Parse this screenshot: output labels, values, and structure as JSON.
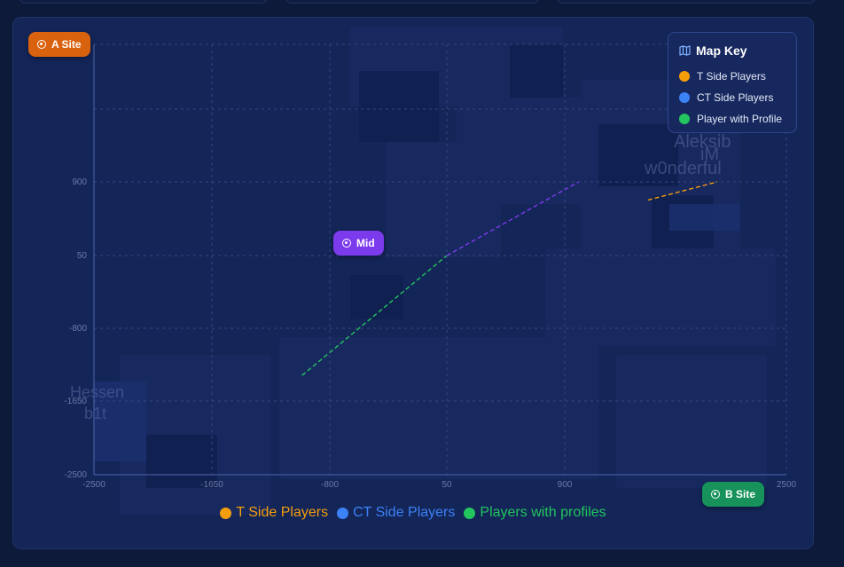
{
  "colors": {
    "t_side": "#f59e0b",
    "ct_side": "#3b82f6",
    "profile": "#22c55e",
    "mid": "#7c3aed",
    "a_site_bg": "#d9620f",
    "b_site_bg": "#16925a"
  },
  "sites": {
    "a_site": "A Site",
    "mid": "Mid",
    "b_site": "B Site"
  },
  "map_key": {
    "title": "Map Key",
    "icon": "map-icon",
    "items": [
      {
        "label": "T Side Players",
        "color": "#f59e0b"
      },
      {
        "label": "CT Side Players",
        "color": "#3b82f6"
      },
      {
        "label": "Player with Profile",
        "color": "#22c55e"
      }
    ]
  },
  "legend": [
    {
      "label": "T Side Players",
      "color": "#f59e0b"
    },
    {
      "label": "CT Side Players",
      "color": "#3b82f6"
    },
    {
      "label": "Players with profiles",
      "color": "#22c55e"
    }
  ],
  "background_labels": {
    "top_right": [
      "Aleksib",
      "iM",
      "w0nderful"
    ],
    "bottom_left": [
      "Hessen",
      "b1t"
    ]
  },
  "chart_data": {
    "type": "scatter",
    "x_ticks": [
      "-2500",
      "-1650",
      "-800",
      "50",
      "900",
      "2500"
    ],
    "y_ticks": [
      "900",
      "50",
      "-800",
      "-1650",
      "-2500"
    ],
    "grid": true,
    "paths": [
      {
        "name": "T Side Players",
        "color": "#f59e0b",
        "dashed": true,
        "points": [
          [
            1500,
            690
          ],
          [
            2000,
            1000
          ]
        ]
      },
      {
        "name": "Players with profiles",
        "color": "#22c55e",
        "dashed": true,
        "points": [
          [
            -1000,
            -1350
          ],
          [
            50,
            50
          ]
        ]
      },
      {
        "name": "Mid",
        "color": "#7c3aed",
        "dashed": true,
        "points": [
          [
            50,
            50
          ],
          [
            1000,
            1000
          ]
        ]
      }
    ]
  }
}
